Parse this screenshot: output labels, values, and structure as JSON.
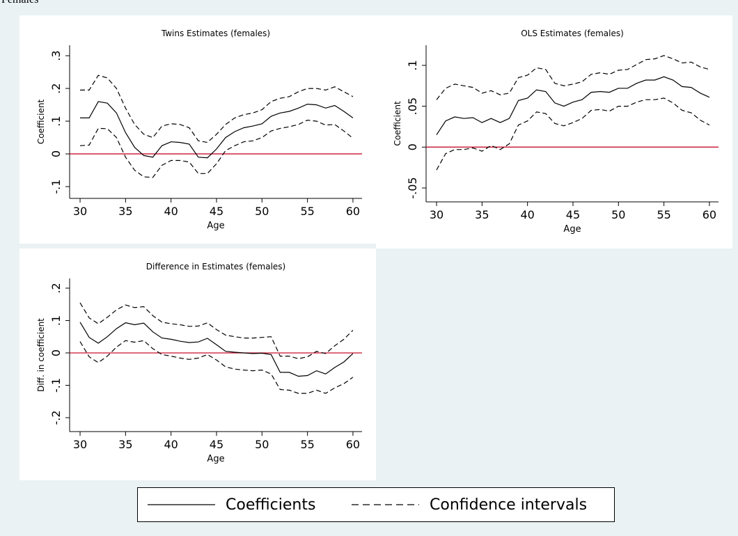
{
  "page_title": "Females",
  "legend": [
    {
      "label": "Coefficients",
      "dash": false
    },
    {
      "label": "Confidence intervals",
      "dash": true
    }
  ],
  "chart_data": [
    {
      "type": "line",
      "title": "Twins Estimates (females)",
      "xlabel": "Age",
      "ylabel": "Coefficient",
      "x": [
        30,
        31,
        32,
        33,
        34,
        35,
        36,
        37,
        38,
        39,
        40,
        41,
        42,
        43,
        44,
        45,
        46,
        47,
        48,
        49,
        50,
        51,
        52,
        53,
        54,
        55,
        56,
        57,
        58,
        59,
        60
      ],
      "series": [
        {
          "dash": false,
          "values": [
            0.11,
            0.11,
            0.16,
            0.155,
            0.125,
            0.065,
            0.02,
            -0.005,
            -0.01,
            0.025,
            0.037,
            0.035,
            0.03,
            -0.01,
            -0.012,
            0.015,
            0.05,
            0.068,
            0.08,
            0.085,
            0.092,
            0.115,
            0.125,
            0.13,
            0.14,
            0.152,
            0.15,
            0.14,
            0.148,
            0.13,
            0.11
          ]
        },
        {
          "dash": true,
          "values": [
            0.195,
            0.195,
            0.24,
            0.232,
            0.2,
            0.14,
            0.09,
            0.06,
            0.05,
            0.085,
            0.092,
            0.09,
            0.08,
            0.04,
            0.035,
            0.06,
            0.09,
            0.11,
            0.12,
            0.125,
            0.135,
            0.16,
            0.17,
            0.175,
            0.19,
            0.2,
            0.2,
            0.195,
            0.205,
            0.19,
            0.175
          ]
        },
        {
          "dash": true,
          "values": [
            0.025,
            0.027,
            0.078,
            0.077,
            0.05,
            -0.01,
            -0.05,
            -0.07,
            -0.072,
            -0.035,
            -0.02,
            -0.02,
            -0.025,
            -0.06,
            -0.06,
            -0.03,
            0.01,
            0.025,
            0.037,
            0.04,
            0.05,
            0.07,
            0.078,
            0.083,
            0.09,
            0.103,
            0.1,
            0.088,
            0.09,
            0.07,
            0.048
          ]
        }
      ],
      "hline": 0,
      "hline_color": "#c8102e",
      "line_color": "#000000",
      "xlim": [
        28.85,
        61
      ],
      "xticks": [
        30,
        35,
        40,
        45,
        50,
        55,
        60
      ],
      "ylim": [
        -0.136,
        0.332
      ],
      "yticks": [
        {
          "value": -0.1,
          "label": "-.1"
        },
        0,
        {
          "value": 0.1,
          "label": ".1"
        },
        {
          "value": 0.2,
          "label": ".2"
        },
        {
          "value": 0.3,
          "label": ".3"
        }
      ]
    },
    {
      "type": "line",
      "title": "OLS Estimates (females)",
      "xlabel": "Age",
      "ylabel": "Coefficient",
      "x": [
        30,
        31,
        32,
        33,
        34,
        35,
        36,
        37,
        38,
        39,
        40,
        41,
        42,
        43,
        44,
        45,
        46,
        47,
        48,
        49,
        50,
        51,
        52,
        53,
        54,
        55,
        56,
        57,
        58,
        59,
        60
      ],
      "series": [
        {
          "dash": false,
          "values": [
            0.015,
            0.032,
            0.037,
            0.035,
            0.036,
            0.03,
            0.035,
            0.03,
            0.035,
            0.057,
            0.06,
            0.07,
            0.068,
            0.054,
            0.05,
            0.055,
            0.058,
            0.067,
            0.068,
            0.067,
            0.072,
            0.072,
            0.078,
            0.082,
            0.082,
            0.086,
            0.082,
            0.074,
            0.073,
            0.066,
            0.061
          ]
        },
        {
          "dash": true,
          "values": [
            0.058,
            0.072,
            0.077,
            0.075,
            0.073,
            0.066,
            0.069,
            0.064,
            0.066,
            0.085,
            0.088,
            0.097,
            0.095,
            0.078,
            0.075,
            0.077,
            0.08,
            0.089,
            0.091,
            0.089,
            0.094,
            0.095,
            0.101,
            0.107,
            0.108,
            0.112,
            0.108,
            0.103,
            0.104,
            0.098,
            0.095
          ]
        },
        {
          "dash": true,
          "values": [
            -0.028,
            -0.008,
            -0.003,
            -0.003,
            -0.001,
            -0.005,
            0.002,
            -0.003,
            0.004,
            0.027,
            0.032,
            0.043,
            0.041,
            0.029,
            0.026,
            0.03,
            0.035,
            0.045,
            0.046,
            0.044,
            0.05,
            0.05,
            0.055,
            0.058,
            0.058,
            0.06,
            0.054,
            0.045,
            0.042,
            0.033,
            0.027
          ]
        }
      ],
      "hline": 0,
      "hline_color": "#c8102e",
      "line_color": "#000000",
      "xlim": [
        28.85,
        61
      ],
      "xticks": [
        30,
        35,
        40,
        45,
        50,
        55,
        60
      ],
      "ylim": [
        -0.067,
        0.1246
      ],
      "yticks": [
        {
          "value": -0.05,
          "label": "-.05"
        },
        0,
        {
          "value": 0.05,
          "label": ".05"
        },
        {
          "value": 0.1,
          "label": ".1"
        }
      ]
    },
    {
      "type": "line",
      "title": "Difference in Estimates (females)",
      "xlabel": "Age",
      "ylabel": "Diff. in coefficient",
      "x": [
        30,
        31,
        32,
        33,
        34,
        35,
        36,
        37,
        38,
        39,
        40,
        41,
        42,
        43,
        44,
        45,
        46,
        47,
        48,
        49,
        50,
        51,
        52,
        53,
        54,
        55,
        56,
        57,
        58,
        59,
        60
      ],
      "series": [
        {
          "dash": false,
          "values": [
            0.095,
            0.048,
            0.03,
            0.05,
            0.075,
            0.093,
            0.087,
            0.092,
            0.065,
            0.046,
            0.042,
            0.036,
            0.032,
            0.034,
            0.045,
            0.025,
            0.005,
            0.002,
            0,
            -0.002,
            -0.001,
            -0.005,
            -0.06,
            -0.06,
            -0.072,
            -0.07,
            -0.055,
            -0.065,
            -0.045,
            -0.028,
            -0.002
          ]
        },
        {
          "dash": true,
          "values": [
            0.155,
            0.108,
            0.09,
            0.11,
            0.133,
            0.148,
            0.14,
            0.143,
            0.115,
            0.095,
            0.09,
            0.087,
            0.082,
            0.083,
            0.093,
            0.072,
            0.055,
            0.05,
            0.046,
            0.046,
            0.048,
            0.05,
            -0.01,
            -0.01,
            -0.018,
            -0.012,
            0.005,
            -0.002,
            0.022,
            0.042,
            0.07
          ]
        },
        {
          "dash": true,
          "values": [
            0.035,
            -0.012,
            -0.03,
            -0.01,
            0.018,
            0.038,
            0.033,
            0.038,
            0.013,
            -0.005,
            -0.01,
            -0.016,
            -0.02,
            -0.016,
            -0.005,
            -0.022,
            -0.043,
            -0.05,
            -0.053,
            -0.055,
            -0.053,
            -0.065,
            -0.113,
            -0.115,
            -0.125,
            -0.125,
            -0.115,
            -0.125,
            -0.108,
            -0.095,
            -0.075
          ]
        }
      ],
      "hline": 0,
      "hline_color": "#c8102e",
      "line_color": "#000000",
      "xlim": [
        28.85,
        61
      ],
      "xticks": [
        30,
        35,
        40,
        45,
        50,
        55,
        60
      ],
      "ylim": [
        -0.243,
        0.23
      ],
      "yticks": [
        {
          "value": -0.2,
          "label": "-.2"
        },
        {
          "value": -0.1,
          "label": "-.1"
        },
        0,
        {
          "value": 0.1,
          "label": ".1"
        },
        {
          "value": 0.2,
          "label": ".2"
        }
      ]
    }
  ]
}
